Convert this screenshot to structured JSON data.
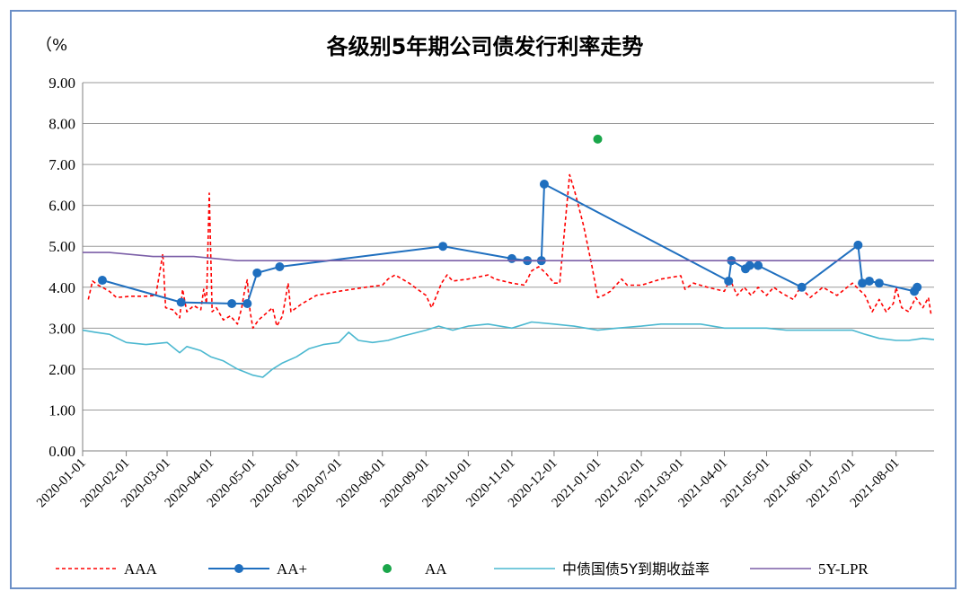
{
  "chart_data": {
    "type": "line",
    "title": "各级别5年期公司债发行利率走势",
    "unit_label": "（%",
    "ylim": [
      0,
      9
    ],
    "y_ticks": [
      "0.00",
      "1.00",
      "2.00",
      "3.00",
      "4.00",
      "5.00",
      "6.00",
      "7.00",
      "8.00",
      "9.00"
    ],
    "x_ticks": [
      "2020-01-01",
      "2020-02-01",
      "2020-03-01",
      "2020-04-01",
      "2020-05-01",
      "2020-06-01",
      "2020-07-01",
      "2020-08-01",
      "2020-09-01",
      "2020-10-01",
      "2020-11-01",
      "2020-12-01",
      "2021-01-01",
      "2021-02-01",
      "2021-03-01",
      "2021-04-01",
      "2021-05-01",
      "2021-06-01",
      "2021-07-01",
      "2021-08-01"
    ],
    "xlim": [
      "2020-01-01",
      "2021-08-28"
    ],
    "grid": "horizontal",
    "legend_position": "bottom",
    "series": [
      {
        "name": "AAA",
        "color": "#ff0000",
        "style": "dashed",
        "points": [
          [
            "2020-01-05",
            3.7
          ],
          [
            "2020-01-08",
            4.15
          ],
          [
            "2020-01-12",
            4.05
          ],
          [
            "2020-01-15",
            4.0
          ],
          [
            "2020-01-20",
            3.9
          ],
          [
            "2020-01-25",
            3.75
          ],
          [
            "2020-02-05",
            3.78
          ],
          [
            "2020-02-15",
            3.78
          ],
          [
            "2020-02-22",
            3.8
          ],
          [
            "2020-02-27",
            4.82
          ],
          [
            "2020-02-29",
            3.5
          ],
          [
            "2020-03-05",
            3.45
          ],
          [
            "2020-03-10",
            3.25
          ],
          [
            "2020-03-12",
            3.95
          ],
          [
            "2020-03-15",
            3.4
          ],
          [
            "2020-03-20",
            3.55
          ],
          [
            "2020-03-25",
            3.45
          ],
          [
            "2020-03-27",
            3.95
          ],
          [
            "2020-03-29",
            3.6
          ],
          [
            "2020-03-31",
            6.3
          ],
          [
            "2020-04-02",
            3.4
          ],
          [
            "2020-04-05",
            3.5
          ],
          [
            "2020-04-10",
            3.2
          ],
          [
            "2020-04-15",
            3.3
          ],
          [
            "2020-04-20",
            3.1
          ],
          [
            "2020-04-23",
            3.5
          ],
          [
            "2020-04-25",
            3.9
          ],
          [
            "2020-04-27",
            4.18
          ],
          [
            "2020-04-29",
            3.4
          ],
          [
            "2020-05-01",
            3.0
          ],
          [
            "2020-05-05",
            3.2
          ],
          [
            "2020-05-15",
            3.5
          ],
          [
            "2020-05-18",
            3.05
          ],
          [
            "2020-05-22",
            3.3
          ],
          [
            "2020-05-26",
            4.1
          ],
          [
            "2020-05-28",
            3.4
          ],
          [
            "2020-06-05",
            3.6
          ],
          [
            "2020-06-15",
            3.8
          ],
          [
            "2020-07-01",
            3.9
          ],
          [
            "2020-07-20",
            4.0
          ],
          [
            "2020-08-01",
            4.05
          ],
          [
            "2020-08-05",
            4.2
          ],
          [
            "2020-08-10",
            4.3
          ],
          [
            "2020-08-20",
            4.1
          ],
          [
            "2020-09-01",
            3.8
          ],
          [
            "2020-09-05",
            3.5
          ],
          [
            "2020-09-12",
            4.1
          ],
          [
            "2020-09-16",
            4.3
          ],
          [
            "2020-09-20",
            4.15
          ],
          [
            "2020-10-01",
            4.2
          ],
          [
            "2020-10-15",
            4.3
          ],
          [
            "2020-10-20",
            4.2
          ],
          [
            "2020-11-01",
            4.1
          ],
          [
            "2020-11-10",
            4.05
          ],
          [
            "2020-11-15",
            4.4
          ],
          [
            "2020-11-20",
            4.5
          ],
          [
            "2020-11-25",
            4.35
          ],
          [
            "2020-12-01",
            4.1
          ],
          [
            "2020-12-05",
            4.1
          ],
          [
            "2020-12-12",
            6.75
          ],
          [
            "2020-12-16",
            6.3
          ],
          [
            "2020-12-22",
            5.5
          ],
          [
            "2020-12-28",
            4.5
          ],
          [
            "2021-01-01",
            3.75
          ],
          [
            "2021-01-05",
            3.8
          ],
          [
            "2021-01-10",
            3.9
          ],
          [
            "2021-01-18",
            4.2
          ],
          [
            "2021-01-22",
            4.05
          ],
          [
            "2021-02-01",
            4.05
          ],
          [
            "2021-02-15",
            4.2
          ],
          [
            "2021-03-01",
            4.28
          ],
          [
            "2021-03-04",
            3.95
          ],
          [
            "2021-03-10",
            4.1
          ],
          [
            "2021-03-20",
            4.0
          ],
          [
            "2021-04-01",
            3.9
          ],
          [
            "2021-04-05",
            4.2
          ],
          [
            "2021-04-10",
            3.8
          ],
          [
            "2021-04-15",
            4.0
          ],
          [
            "2021-04-20",
            3.8
          ],
          [
            "2021-04-25",
            4.0
          ],
          [
            "2021-05-01",
            3.8
          ],
          [
            "2021-05-06",
            4.0
          ],
          [
            "2021-05-12",
            3.85
          ],
          [
            "2021-05-20",
            3.7
          ],
          [
            "2021-05-25",
            4.0
          ],
          [
            "2021-06-01",
            3.75
          ],
          [
            "2021-06-10",
            4.0
          ],
          [
            "2021-06-20",
            3.8
          ],
          [
            "2021-07-01",
            4.1
          ],
          [
            "2021-07-10",
            3.8
          ],
          [
            "2021-07-15",
            3.4
          ],
          [
            "2021-07-20",
            3.7
          ],
          [
            "2021-07-25",
            3.4
          ],
          [
            "2021-07-30",
            3.6
          ],
          [
            "2021-08-01",
            4.0
          ],
          [
            "2021-08-05",
            3.5
          ],
          [
            "2021-08-10",
            3.4
          ],
          [
            "2021-08-15",
            3.75
          ],
          [
            "2021-08-20",
            3.5
          ],
          [
            "2021-08-24",
            3.75
          ],
          [
            "2021-08-26",
            3.3
          ]
        ]
      },
      {
        "name": "AA+",
        "color": "#1f6fbf",
        "style": "solid-markers",
        "points": [
          [
            "2020-01-15",
            4.17
          ],
          [
            "2020-03-11",
            3.63
          ],
          [
            "2020-04-16",
            3.6
          ],
          [
            "2020-04-27",
            3.6
          ],
          [
            "2020-05-04",
            4.35
          ],
          [
            "2020-05-20",
            4.5
          ],
          [
            "2020-09-13",
            5.0
          ],
          [
            "2020-11-01",
            4.7
          ],
          [
            "2020-11-12",
            4.65
          ],
          [
            "2020-11-22",
            4.65
          ],
          [
            "2020-11-24",
            6.52
          ],
          [
            "2021-04-04",
            4.15
          ],
          [
            "2021-04-06",
            4.65
          ],
          [
            "2021-04-16",
            4.45
          ],
          [
            "2021-04-19",
            4.53
          ],
          [
            "2021-04-25",
            4.53
          ],
          [
            "2021-05-26",
            4.0
          ],
          [
            "2021-07-05",
            5.03
          ],
          [
            "2021-07-08",
            4.1
          ],
          [
            "2021-07-13",
            4.15
          ],
          [
            "2021-07-20",
            4.1
          ],
          [
            "2021-08-14",
            3.9
          ],
          [
            "2021-08-16",
            4.0
          ]
        ]
      },
      {
        "name": "AA",
        "color": "#1aa64a",
        "style": "markers",
        "points": [
          [
            "2021-01-01",
            7.62
          ]
        ]
      },
      {
        "name": "中债国债5Y到期收益率",
        "color": "#4bb8d0",
        "style": "solid",
        "points": [
          [
            "2020-01-01",
            2.95
          ],
          [
            "2020-01-10",
            2.9
          ],
          [
            "2020-01-20",
            2.85
          ],
          [
            "2020-02-01",
            2.65
          ],
          [
            "2020-02-15",
            2.6
          ],
          [
            "2020-03-01",
            2.65
          ],
          [
            "2020-03-10",
            2.4
          ],
          [
            "2020-03-15",
            2.55
          ],
          [
            "2020-03-25",
            2.45
          ],
          [
            "2020-04-01",
            2.3
          ],
          [
            "2020-04-10",
            2.2
          ],
          [
            "2020-04-20",
            2.0
          ],
          [
            "2020-05-01",
            1.85
          ],
          [
            "2020-05-08",
            1.8
          ],
          [
            "2020-05-15",
            2.0
          ],
          [
            "2020-05-22",
            2.15
          ],
          [
            "2020-06-01",
            2.3
          ],
          [
            "2020-06-10",
            2.5
          ],
          [
            "2020-06-20",
            2.6
          ],
          [
            "2020-07-01",
            2.65
          ],
          [
            "2020-07-08",
            2.9
          ],
          [
            "2020-07-15",
            2.7
          ],
          [
            "2020-07-25",
            2.65
          ],
          [
            "2020-08-05",
            2.7
          ],
          [
            "2020-08-15",
            2.8
          ],
          [
            "2020-09-01",
            2.95
          ],
          [
            "2020-09-10",
            3.05
          ],
          [
            "2020-09-20",
            2.95
          ],
          [
            "2020-10-01",
            3.05
          ],
          [
            "2020-10-15",
            3.1
          ],
          [
            "2020-11-01",
            3.0
          ],
          [
            "2020-11-15",
            3.15
          ],
          [
            "2020-12-01",
            3.1
          ],
          [
            "2020-12-15",
            3.05
          ],
          [
            "2021-01-01",
            2.95
          ],
          [
            "2021-01-15",
            3.0
          ],
          [
            "2021-02-01",
            3.05
          ],
          [
            "2021-02-15",
            3.1
          ],
          [
            "2021-03-01",
            3.1
          ],
          [
            "2021-03-15",
            3.1
          ],
          [
            "2021-04-01",
            3.0
          ],
          [
            "2021-04-15",
            3.0
          ],
          [
            "2021-05-01",
            3.0
          ],
          [
            "2021-05-15",
            2.95
          ],
          [
            "2021-06-01",
            2.95
          ],
          [
            "2021-06-15",
            2.95
          ],
          [
            "2021-07-01",
            2.95
          ],
          [
            "2021-07-10",
            2.85
          ],
          [
            "2021-07-20",
            2.75
          ],
          [
            "2021-08-01",
            2.7
          ],
          [
            "2021-08-10",
            2.7
          ],
          [
            "2021-08-20",
            2.75
          ],
          [
            "2021-08-28",
            2.72
          ]
        ]
      },
      {
        "name": "5Y-LPR",
        "color": "#7b5ea7",
        "style": "solid",
        "points": [
          [
            "2020-01-01",
            4.85
          ],
          [
            "2020-01-20",
            4.85
          ],
          [
            "2020-02-20",
            4.75
          ],
          [
            "2020-03-20",
            4.75
          ],
          [
            "2020-04-20",
            4.65
          ],
          [
            "2021-08-28",
            4.65
          ]
        ]
      }
    ]
  }
}
